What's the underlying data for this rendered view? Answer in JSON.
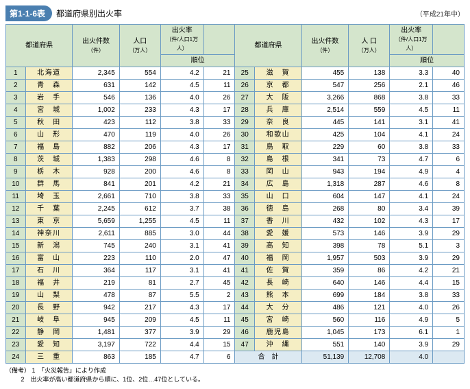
{
  "header": {
    "tag": "第1-1-6表",
    "title": "都道府県別出火率",
    "year_note": "（平成21年中）"
  },
  "columns": {
    "pref": "都道府県",
    "fires": "出火件数",
    "fires_unit": "（件）",
    "pop": "人口",
    "pop_unit": "（万人）",
    "pop2": "人 口",
    "rate": "出火率",
    "rate_unit": "（件/人口1万人）",
    "rank": "順位"
  },
  "rows": [
    {
      "n": 1,
      "pref": "北海道",
      "fires": "2,345",
      "pop": "554",
      "rate": "4.2",
      "rank": 21
    },
    {
      "n": 2,
      "pref": "青　森",
      "fires": "631",
      "pop": "142",
      "rate": "4.5",
      "rank": 11
    },
    {
      "n": 3,
      "pref": "岩　手",
      "fires": "546",
      "pop": "136",
      "rate": "4.0",
      "rank": 26
    },
    {
      "n": 4,
      "pref": "宮　城",
      "fires": "1,002",
      "pop": "233",
      "rate": "4.3",
      "rank": 17
    },
    {
      "n": 5,
      "pref": "秋　田",
      "fires": "423",
      "pop": "112",
      "rate": "3.8",
      "rank": 33
    },
    {
      "n": 6,
      "pref": "山　形",
      "fires": "470",
      "pop": "119",
      "rate": "4.0",
      "rank": 26
    },
    {
      "n": 7,
      "pref": "福　島",
      "fires": "882",
      "pop": "206",
      "rate": "4.3",
      "rank": 17
    },
    {
      "n": 8,
      "pref": "茨　城",
      "fires": "1,383",
      "pop": "298",
      "rate": "4.6",
      "rank": 8
    },
    {
      "n": 9,
      "pref": "栃　木",
      "fires": "928",
      "pop": "200",
      "rate": "4.6",
      "rank": 8
    },
    {
      "n": 10,
      "pref": "群　馬",
      "fires": "841",
      "pop": "201",
      "rate": "4.2",
      "rank": 21
    },
    {
      "n": 11,
      "pref": "埼　玉",
      "fires": "2,661",
      "pop": "710",
      "rate": "3.8",
      "rank": 33
    },
    {
      "n": 12,
      "pref": "千　葉",
      "fires": "2,245",
      "pop": "612",
      "rate": "3.7",
      "rank": 38
    },
    {
      "n": 13,
      "pref": "東　京",
      "fires": "5,659",
      "pop": "1,255",
      "rate": "4.5",
      "rank": 11
    },
    {
      "n": 14,
      "pref": "神奈川",
      "fires": "2,611",
      "pop": "885",
      "rate": "3.0",
      "rank": 44
    },
    {
      "n": 15,
      "pref": "新　潟",
      "fires": "745",
      "pop": "240",
      "rate": "3.1",
      "rank": 41
    },
    {
      "n": 16,
      "pref": "富　山",
      "fires": "223",
      "pop": "110",
      "rate": "2.0",
      "rank": 47
    },
    {
      "n": 17,
      "pref": "石　川",
      "fires": "364",
      "pop": "117",
      "rate": "3.1",
      "rank": 41
    },
    {
      "n": 18,
      "pref": "福　井",
      "fires": "219",
      "pop": "81",
      "rate": "2.7",
      "rank": 45
    },
    {
      "n": 19,
      "pref": "山　梨",
      "fires": "478",
      "pop": "87",
      "rate": "5.5",
      "rank": 2
    },
    {
      "n": 20,
      "pref": "長　野",
      "fires": "942",
      "pop": "217",
      "rate": "4.3",
      "rank": 17
    },
    {
      "n": 21,
      "pref": "岐　阜",
      "fires": "945",
      "pop": "209",
      "rate": "4.5",
      "rank": 11
    },
    {
      "n": 22,
      "pref": "静　岡",
      "fires": "1,481",
      "pop": "377",
      "rate": "3.9",
      "rank": 29
    },
    {
      "n": 23,
      "pref": "愛　知",
      "fires": "3,197",
      "pop": "722",
      "rate": "4.4",
      "rank": 15
    },
    {
      "n": 24,
      "pref": "三　重",
      "fires": "863",
      "pop": "185",
      "rate": "4.7",
      "rank": 6
    },
    {
      "n": 25,
      "pref": "滋　賀",
      "fires": "455",
      "pop": "138",
      "rate": "3.3",
      "rank": 40
    },
    {
      "n": 26,
      "pref": "京　都",
      "fires": "547",
      "pop": "256",
      "rate": "2.1",
      "rank": 46
    },
    {
      "n": 27,
      "pref": "大　阪",
      "fires": "3,266",
      "pop": "868",
      "rate": "3.8",
      "rank": 33
    },
    {
      "n": 28,
      "pref": "兵　庫",
      "fires": "2,514",
      "pop": "559",
      "rate": "4.5",
      "rank": 11
    },
    {
      "n": 29,
      "pref": "奈　良",
      "fires": "445",
      "pop": "141",
      "rate": "3.1",
      "rank": 41
    },
    {
      "n": 30,
      "pref": "和歌山",
      "fires": "425",
      "pop": "104",
      "rate": "4.1",
      "rank": 24
    },
    {
      "n": 31,
      "pref": "鳥　取",
      "fires": "229",
      "pop": "60",
      "rate": "3.8",
      "rank": 33
    },
    {
      "n": 32,
      "pref": "島　根",
      "fires": "341",
      "pop": "73",
      "rate": "4.7",
      "rank": 6
    },
    {
      "n": 33,
      "pref": "岡　山",
      "fires": "943",
      "pop": "194",
      "rate": "4.9",
      "rank": 4
    },
    {
      "n": 34,
      "pref": "広　島",
      "fires": "1,318",
      "pop": "287",
      "rate": "4.6",
      "rank": 8
    },
    {
      "n": 35,
      "pref": "山　口",
      "fires": "604",
      "pop": "147",
      "rate": "4.1",
      "rank": 24
    },
    {
      "n": 36,
      "pref": "徳　島",
      "fires": "268",
      "pop": "80",
      "rate": "3.4",
      "rank": 39
    },
    {
      "n": 37,
      "pref": "香　川",
      "fires": "432",
      "pop": "102",
      "rate": "4.3",
      "rank": 17
    },
    {
      "n": 38,
      "pref": "愛　媛",
      "fires": "573",
      "pop": "146",
      "rate": "3.9",
      "rank": 29
    },
    {
      "n": 39,
      "pref": "高　知",
      "fires": "398",
      "pop": "78",
      "rate": "5.1",
      "rank": 3
    },
    {
      "n": 40,
      "pref": "福　岡",
      "fires": "1,957",
      "pop": "503",
      "rate": "3.9",
      "rank": 29
    },
    {
      "n": 41,
      "pref": "佐　賀",
      "fires": "359",
      "pop": "86",
      "rate": "4.2",
      "rank": 21
    },
    {
      "n": 42,
      "pref": "長　崎",
      "fires": "640",
      "pop": "146",
      "rate": "4.4",
      "rank": 15
    },
    {
      "n": 43,
      "pref": "熊　本",
      "fires": "699",
      "pop": "184",
      "rate": "3.8",
      "rank": 33
    },
    {
      "n": 44,
      "pref": "大　分",
      "fires": "486",
      "pop": "121",
      "rate": "4.0",
      "rank": 26
    },
    {
      "n": 45,
      "pref": "宮　崎",
      "fires": "560",
      "pop": "116",
      "rate": "4.9",
      "rank": 5
    },
    {
      "n": 46,
      "pref": "鹿児島",
      "fires": "1,045",
      "pop": "173",
      "rate": "6.1",
      "rank": 1
    },
    {
      "n": 47,
      "pref": "沖　縄",
      "fires": "551",
      "pop": "140",
      "rate": "3.9",
      "rank": 29
    }
  ],
  "total": {
    "label": "合　計",
    "fires": "51,139",
    "pop": "12,708",
    "rate": "4.0",
    "rank": ""
  },
  "notes": {
    "label": "（備考）",
    "n1": "1　「火災報告」により作成",
    "n2": "2　出火率が高い都道府県から順に、1位、2位…47位としている。"
  }
}
